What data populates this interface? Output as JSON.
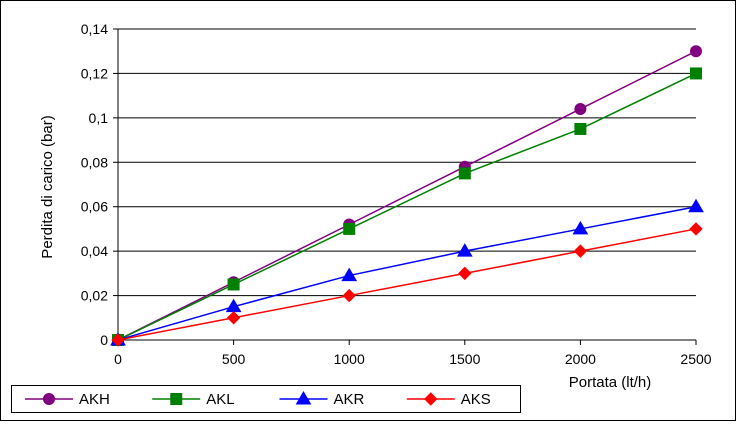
{
  "chart_data": {
    "type": "line",
    "title": "",
    "xlabel": "Portata (lt/h)",
    "ylabel": "Perdita di carico (bar)",
    "x": [
      0,
      500,
      1000,
      1500,
      2000,
      2500
    ],
    "xlim": [
      0,
      2500
    ],
    "ylim": [
      0,
      0.14
    ],
    "x_ticks": [
      0,
      500,
      1000,
      1500,
      2000,
      2500
    ],
    "x_tick_labels": [
      "0",
      "500",
      "1000",
      "1500",
      "2000",
      "2500"
    ],
    "y_ticks": [
      0,
      0.02,
      0.04,
      0.06,
      0.08,
      0.1,
      0.12,
      0.14
    ],
    "y_tick_labels": [
      "0",
      "0,02",
      "0,04",
      "0,06",
      "0,08",
      "0,1",
      "0,12",
      "0,14"
    ],
    "grid": "horizontal",
    "legend_position": "bottom-left",
    "series": [
      {
        "name": "AKH",
        "values": [
          0,
          0.026,
          0.052,
          0.078,
          0.104,
          0.13
        ],
        "color": "#800080",
        "marker": "circle"
      },
      {
        "name": "AKL",
        "values": [
          0,
          0.025,
          0.05,
          0.075,
          0.095,
          0.12
        ],
        "color": "#008000",
        "marker": "square"
      },
      {
        "name": "AKR",
        "values": [
          0,
          0.015,
          0.029,
          0.04,
          0.05,
          0.06
        ],
        "color": "#0000ff",
        "marker": "triangle"
      },
      {
        "name": "AKS",
        "values": [
          0,
          0.01,
          0.02,
          0.03,
          0.04,
          0.05
        ],
        "color": "#ff0000",
        "marker": "diamond"
      }
    ]
  }
}
